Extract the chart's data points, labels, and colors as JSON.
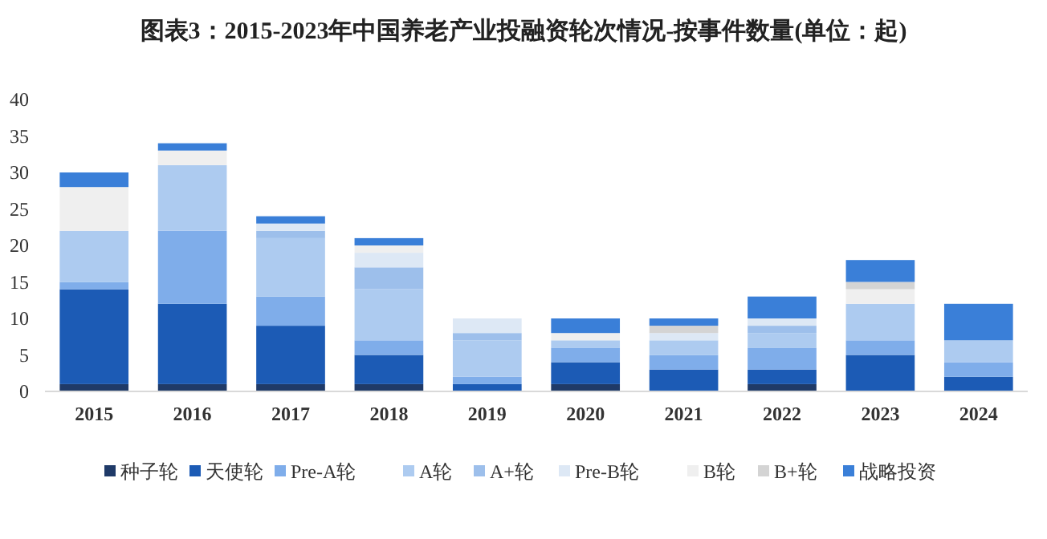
{
  "chart_data": {
    "type": "bar",
    "stacked": true,
    "title": "图表3：2015-2023年中国养老产业投融资轮次情况-按事件数量(单位：起)",
    "categories": [
      "2015",
      "2016",
      "2017",
      "2018",
      "2019",
      "2020",
      "2021",
      "2022",
      "2023",
      "2024"
    ],
    "series": [
      {
        "name": "种子轮",
        "color": "#1f3a68",
        "values": [
          1,
          1,
          1,
          1,
          0,
          1,
          0,
          1,
          0,
          0
        ]
      },
      {
        "name": "天使轮",
        "color": "#1c5bb5",
        "values": [
          13,
          11,
          8,
          4,
          1,
          3,
          3,
          2,
          5,
          2
        ]
      },
      {
        "name": "Pre-A轮",
        "color": "#7fadea",
        "values": [
          1,
          10,
          4,
          2,
          1,
          2,
          2,
          3,
          2,
          2
        ]
      },
      {
        "name": "A轮",
        "color": "#adcbf0",
        "values": [
          7,
          9,
          8,
          7,
          5,
          1,
          2,
          2,
          5,
          3
        ]
      },
      {
        "name": "A+轮",
        "color": "#9dbfeb",
        "values": [
          0,
          0,
          1,
          3,
          1,
          0,
          0,
          1,
          0,
          0
        ]
      },
      {
        "name": "Pre-B轮",
        "color": "#dde8f5",
        "values": [
          0,
          0,
          1,
          2,
          2,
          0,
          1,
          1,
          0,
          0
        ]
      },
      {
        "name": "B轮",
        "color": "#efefef",
        "values": [
          6,
          2,
          0,
          1,
          0,
          1,
          0,
          0,
          2,
          0
        ]
      },
      {
        "name": "B+轮",
        "color": "#d4d4d4",
        "values": [
          0,
          0,
          0,
          0,
          0,
          0,
          1,
          0,
          1,
          0
        ]
      },
      {
        "name": "战略投资",
        "color": "#3a7fd8",
        "values": [
          2,
          1,
          1,
          1,
          0,
          2,
          1,
          3,
          3,
          5
        ]
      }
    ],
    "ylim": [
      0,
      40
    ],
    "yticks": [
      0,
      5,
      10,
      15,
      20,
      25,
      30,
      35,
      40
    ],
    "grid": false,
    "legend": "bottom"
  }
}
